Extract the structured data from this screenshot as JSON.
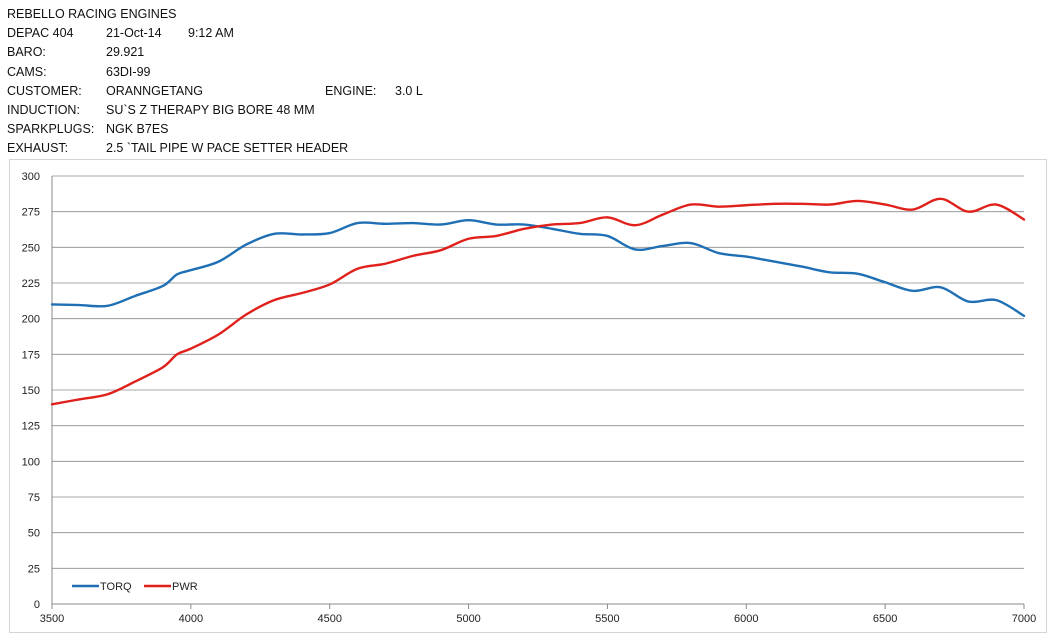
{
  "header": {
    "title": "REBELLO RACING ENGINES",
    "rows": [
      {
        "label": "DEPAC 404",
        "value": "21-Oct-14",
        "extra": "9:12 AM"
      },
      {
        "label": "BARO:",
        "value": "29.921"
      },
      {
        "label": "CAMS:",
        "value": "63DI-99"
      },
      {
        "label": "CUSTOMER:",
        "value": "ORANNGETANG",
        "extra_label": "ENGINE:",
        "extra": "3.0 L"
      },
      {
        "label": "INDUCTION:",
        "value": "SU`S Z THERAPY BIG BORE 48 MM"
      },
      {
        "label": "SPARKPLUGS:",
        "value": "NGK B7ES"
      },
      {
        "label": "EXHAUST:",
        "value": "2.5 `TAIL PIPE W PACE SETTER HEADER"
      }
    ]
  },
  "chart_data": {
    "type": "line",
    "title": "",
    "xlabel": "",
    "ylabel": "",
    "xlim": [
      3500,
      7000
    ],
    "ylim": [
      0,
      300
    ],
    "x_ticks": [
      3500,
      4000,
      4500,
      5000,
      5500,
      6000,
      6500,
      7000
    ],
    "y_ticks": [
      0,
      25,
      50,
      75,
      100,
      125,
      150,
      175,
      200,
      225,
      250,
      275,
      300
    ],
    "grid": "horizontal",
    "legend_position": "bottom-left",
    "series": [
      {
        "name": "TORQ",
        "color": "#1f6fb5",
        "x": [
          3500,
          3600,
          3700,
          3800,
          3900,
          3950,
          4000,
          4100,
          4200,
          4300,
          4400,
          4500,
          4600,
          4700,
          4800,
          4900,
          5000,
          5100,
          5200,
          5300,
          5400,
          5500,
          5600,
          5700,
          5800,
          5900,
          6000,
          6100,
          6200,
          6300,
          6400,
          6500,
          6600,
          6700,
          6800,
          6900,
          7000
        ],
        "y": [
          210,
          209.5,
          209,
          216,
          223,
          231,
          234,
          240,
          252,
          259.5,
          259,
          260,
          267,
          266.5,
          267,
          266,
          269,
          266,
          266,
          263,
          259.5,
          258,
          248.5,
          251,
          253,
          246,
          243.5,
          240,
          236.5,
          232.5,
          231.5,
          225.5,
          219.5,
          222,
          212,
          213,
          202
        ]
      },
      {
        "name": "PWR",
        "color": "#e0201b",
        "x": [
          3500,
          3600,
          3700,
          3800,
          3900,
          3950,
          4000,
          4100,
          4200,
          4300,
          4400,
          4500,
          4600,
          4700,
          4800,
          4900,
          5000,
          5100,
          5200,
          5300,
          5400,
          5500,
          5600,
          5700,
          5800,
          5900,
          6000,
          6100,
          6200,
          6300,
          6400,
          6500,
          6600,
          6700,
          6800,
          6900,
          7000
        ],
        "y": [
          140,
          143.5,
          147,
          156,
          166,
          175,
          179,
          189,
          203,
          213,
          218,
          224,
          235,
          238.5,
          244,
          248,
          256,
          258,
          263,
          266,
          267,
          271,
          265.5,
          273,
          280,
          278.5,
          279.5,
          280.5,
          280.5,
          280,
          282.5,
          280,
          276.5,
          284,
          275,
          280,
          269.5
        ]
      }
    ]
  }
}
